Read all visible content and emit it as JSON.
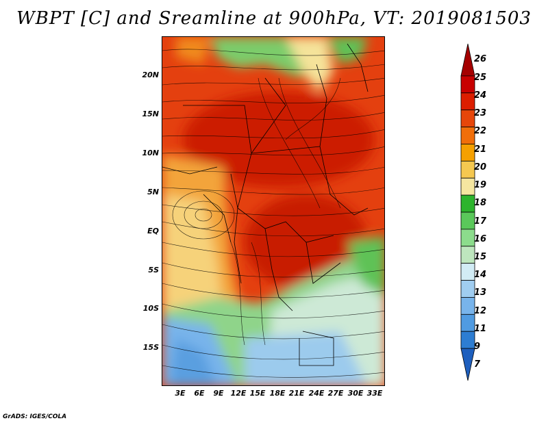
{
  "title": "WBPT [C] and Sreamline at 900hPa, VT: 2019081503",
  "lat_labels": [
    "20N",
    "15N",
    "10N",
    "5N",
    "EQ",
    "5S",
    "10S",
    "15S"
  ],
  "lon_labels": [
    "3E",
    "6E",
    "9E",
    "12E",
    "15E",
    "18E",
    "21E",
    "24E",
    "27E",
    "30E",
    "33E"
  ],
  "colorbar": {
    "labels": [
      "26",
      "25",
      "24",
      "23",
      "22",
      "21",
      "20",
      "19",
      "18",
      "17",
      "16",
      "15",
      "14",
      "13",
      "12",
      "11",
      "9",
      "7"
    ],
    "colors": [
      "#a50000",
      "#c80000",
      "#dc1e00",
      "#e6460a",
      "#f06e0a",
      "#f5a000",
      "#f5c850",
      "#f5e6a0",
      "#2db42d",
      "#5ac85a",
      "#8cdc8c",
      "#bee6be",
      "#d2ecf5",
      "#a0cdf0",
      "#78b4eb",
      "#509be1",
      "#2d7dd2",
      "#1e5fbe"
    ]
  },
  "credit": "GrADS: IGES/COLA"
}
